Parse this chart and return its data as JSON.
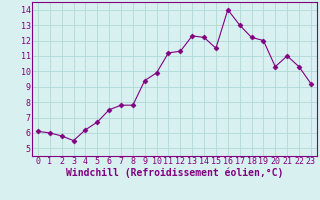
{
  "x": [
    0,
    1,
    2,
    3,
    4,
    5,
    6,
    7,
    8,
    9,
    10,
    11,
    12,
    13,
    14,
    15,
    16,
    17,
    18,
    19,
    20,
    21,
    22,
    23
  ],
  "y": [
    6.1,
    6.0,
    5.8,
    5.5,
    6.2,
    6.7,
    7.5,
    7.8,
    7.8,
    9.4,
    9.9,
    11.2,
    11.3,
    12.3,
    12.2,
    11.5,
    14.0,
    13.0,
    12.2,
    12.0,
    10.3,
    11.0,
    10.3,
    9.2
  ],
  "line_color": "#800080",
  "marker": "D",
  "marker_size": 2.5,
  "bg_color": "#d9f0f0",
  "grid_color": "#b0d8d8",
  "xlabel": "Windchill (Refroidissement éolien,°C)",
  "ylabel": "",
  "xlim": [
    -0.5,
    23.5
  ],
  "ylim": [
    4.5,
    14.5
  ],
  "yticks": [
    5,
    6,
    7,
    8,
    9,
    10,
    11,
    12,
    13,
    14
  ],
  "xticks": [
    0,
    1,
    2,
    3,
    4,
    5,
    6,
    7,
    8,
    9,
    10,
    11,
    12,
    13,
    14,
    15,
    16,
    17,
    18,
    19,
    20,
    21,
    22,
    23
  ],
  "tick_label_fontsize": 6,
  "xlabel_fontsize": 7,
  "spine_color": "#800080"
}
